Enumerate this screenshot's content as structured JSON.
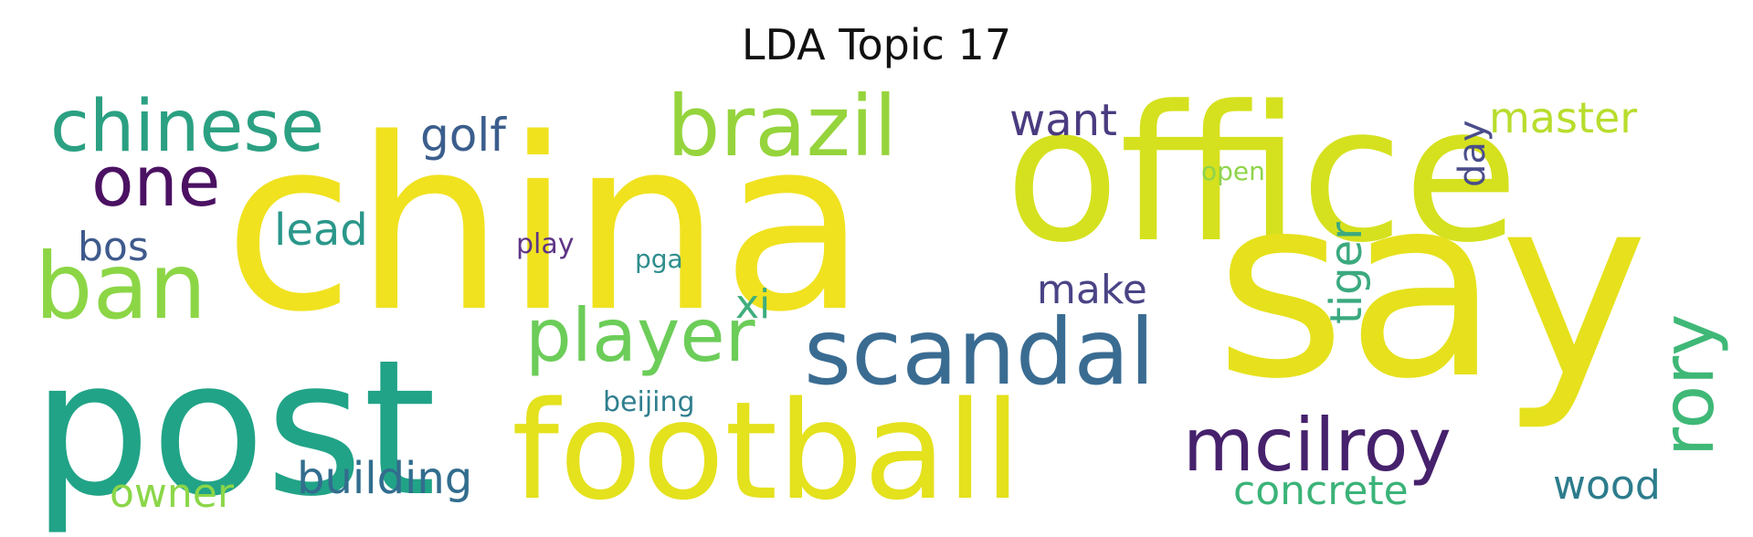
{
  "chart_data": {
    "type": "wordcloud",
    "title": "LDA Topic 17",
    "words": [
      {
        "text": "china",
        "color": "#f0e21f"
      },
      {
        "text": "office",
        "color": "#d5e11e"
      },
      {
        "text": "say",
        "color": "#e6e11c"
      },
      {
        "text": "post",
        "color": "#21a387"
      },
      {
        "text": "football",
        "color": "#e4e11d"
      },
      {
        "text": "scandal",
        "color": "#3a6c92"
      },
      {
        "text": "brazil",
        "color": "#95d43c"
      },
      {
        "text": "chinese",
        "color": "#2ba082"
      },
      {
        "text": "player",
        "color": "#6ccd59"
      },
      {
        "text": "ban",
        "color": "#8cd646"
      },
      {
        "text": "mcilroy",
        "color": "#46216c"
      },
      {
        "text": "rory",
        "color": "#3fb877"
      },
      {
        "text": "one",
        "color": "#4b1162"
      },
      {
        "text": "golf",
        "color": "#3b5e8d"
      },
      {
        "text": "want",
        "color": "#4a3b80"
      },
      {
        "text": "master",
        "color": "#b8dd2d"
      },
      {
        "text": "tiger",
        "color": "#3ba97f"
      },
      {
        "text": "day",
        "color": "#4a4d8a"
      },
      {
        "text": "lead",
        "color": "#2a978a"
      },
      {
        "text": "bos",
        "color": "#3f5a8c"
      },
      {
        "text": "make",
        "color": "#4a4486"
      },
      {
        "text": "xi",
        "color": "#3fae7d"
      },
      {
        "text": "building",
        "color": "#326d8e"
      },
      {
        "text": "owner",
        "color": "#8bd648"
      },
      {
        "text": "concrete",
        "color": "#3bb378"
      },
      {
        "text": "wood",
        "color": "#2c7c8c"
      },
      {
        "text": "open",
        "color": "#8fd44a"
      },
      {
        "text": "play",
        "color": "#5e3586"
      },
      {
        "text": "pga",
        "color": "#2e8e8d"
      },
      {
        "text": "beijing",
        "color": "#2f7f8e"
      }
    ]
  }
}
